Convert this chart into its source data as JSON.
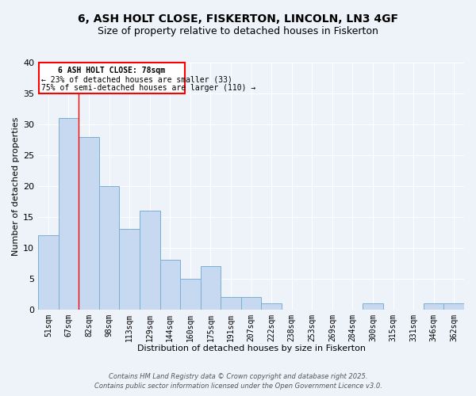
{
  "title": "6, ASH HOLT CLOSE, FISKERTON, LINCOLN, LN3 4GF",
  "subtitle": "Size of property relative to detached houses in Fiskerton",
  "xlabel": "Distribution of detached houses by size in Fiskerton",
  "ylabel": "Number of detached properties",
  "categories": [
    "51sqm",
    "67sqm",
    "82sqm",
    "98sqm",
    "113sqm",
    "129sqm",
    "144sqm",
    "160sqm",
    "175sqm",
    "191sqm",
    "207sqm",
    "222sqm",
    "238sqm",
    "253sqm",
    "269sqm",
    "284sqm",
    "300sqm",
    "315sqm",
    "331sqm",
    "346sqm",
    "362sqm"
  ],
  "values": [
    12,
    31,
    28,
    20,
    13,
    16,
    8,
    5,
    7,
    2,
    2,
    1,
    0,
    0,
    0,
    0,
    1,
    0,
    0,
    1,
    1
  ],
  "bar_color": "#c6d9f0",
  "bar_edge_color": "#7ab0d4",
  "red_line_index": 2,
  "ylim": [
    0,
    40
  ],
  "yticks": [
    0,
    5,
    10,
    15,
    20,
    25,
    30,
    35,
    40
  ],
  "annotation_title": "6 ASH HOLT CLOSE: 78sqm",
  "annotation_line1": "← 23% of detached houses are smaller (33)",
  "annotation_line2": "75% of semi-detached houses are larger (110) →",
  "footer1": "Contains HM Land Registry data © Crown copyright and database right 2025.",
  "footer2": "Contains public sector information licensed under the Open Government Licence v3.0.",
  "bg_color": "#eef2f9",
  "title_fontsize": 10,
  "subtitle_fontsize": 9
}
